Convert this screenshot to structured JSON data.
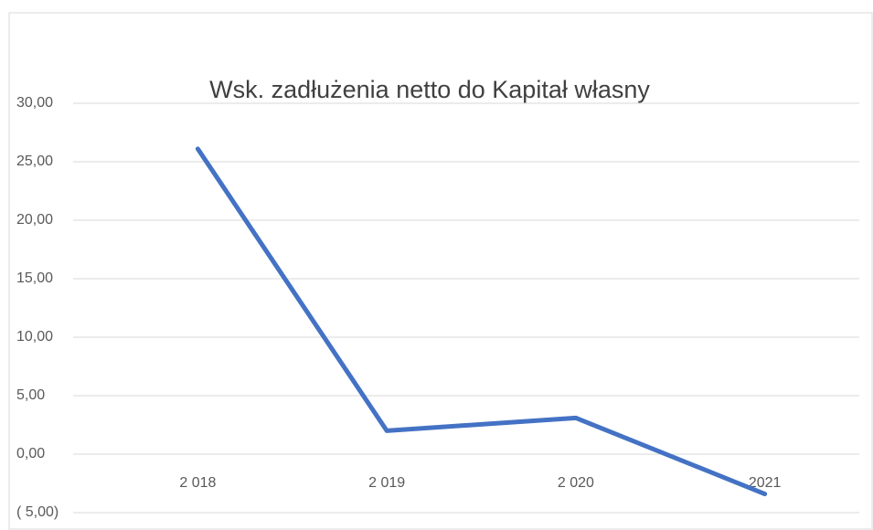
{
  "chart_data": {
    "type": "line",
    "title": "Wsk. zadłużenia netto do Kapitał własny",
    "categories": [
      "2 018",
      "2 019",
      "2 020",
      "2021"
    ],
    "series": [
      {
        "name": "Wsk. zadłużenia netto do Kapitał własny",
        "color": "#4472c4",
        "values": [
          26.1,
          2.0,
          3.1,
          -3.4
        ]
      }
    ],
    "ylim": [
      -5,
      30
    ],
    "yticks": [
      {
        "value": -5,
        "label": "( 5,00)"
      },
      {
        "value": 0,
        "label": "0,00"
      },
      {
        "value": 5,
        "label": "5,00"
      },
      {
        "value": 10,
        "label": "10,00"
      },
      {
        "value": 15,
        "label": "15,00"
      },
      {
        "value": 20,
        "label": "20,00"
      },
      {
        "value": 25,
        "label": "25,00"
      },
      {
        "value": 30,
        "label": "30,00"
      }
    ],
    "grid": true
  }
}
